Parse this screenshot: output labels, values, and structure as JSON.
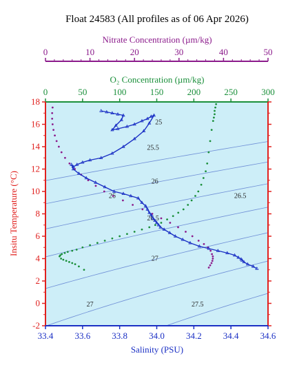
{
  "chart_data": {
    "type": "scatter",
    "title": "Float 24583  (All profiles as of 06 Apr 2026)",
    "xlabel": "Salinity (PSU)",
    "ylabel": "Insitu Temperature (°C)",
    "xlim": [
      33.4,
      34.6
    ],
    "ylim": [
      -2,
      18
    ],
    "x_ticks": [
      "33.4",
      "33.6",
      "33.8",
      "34.0",
      "34.2",
      "34.4",
      "34.6"
    ],
    "y_ticks": [
      "-2",
      "0",
      "2",
      "4",
      "6",
      "8",
      "10",
      "12",
      "14",
      "16",
      "18"
    ],
    "background": "#cdeef8",
    "grid": false,
    "nitrate_axis": {
      "label": "Nitrate Concentration (µm/kg)",
      "range": [
        0,
        50
      ],
      "ticks": [
        "0",
        "10",
        "20",
        "30",
        "40",
        "50"
      ],
      "color": "#8b1a8b"
    },
    "oxygen_axis": {
      "label": "O₂ Concentration (µm/kg)",
      "range": [
        0,
        300
      ],
      "ticks": [
        "0",
        "50",
        "100",
        "150",
        "200",
        "250",
        "300"
      ],
      "color": "#1a8f3a"
    },
    "isopycnals": {
      "color": "#6f8fd6",
      "labels": [
        {
          "text": "25",
          "s": 34.01,
          "t": 16.2
        },
        {
          "text": "25.5",
          "s": 33.98,
          "t": 13.9
        },
        {
          "text": "26",
          "s": 33.99,
          "t": 10.9
        },
        {
          "text": "26",
          "s": 33.76,
          "t": 9.6
        },
        {
          "text": "26.5",
          "s": 34.45,
          "t": 9.6
        },
        {
          "text": "26.5",
          "s": 33.98,
          "t": 7.6
        },
        {
          "text": "27",
          "s": 33.99,
          "t": 4.0
        },
        {
          "text": "27",
          "s": 33.64,
          "t": -0.1
        },
        {
          "text": "27.5",
          "s": 34.22,
          "t": -0.1
        }
      ]
    },
    "series": [
      {
        "name": "Salinity",
        "color": "#1a2fc4",
        "x": [
          33.7,
          33.73,
          33.76,
          33.79,
          33.82,
          33.81,
          33.78,
          33.76,
          33.79,
          33.84,
          33.88,
          33.92,
          33.95,
          33.97,
          33.985,
          33.96,
          33.93,
          33.88,
          33.82,
          33.76,
          33.7,
          33.64,
          33.6,
          33.57,
          33.55,
          33.54,
          33.55,
          33.58,
          33.62,
          33.67,
          33.72,
          33.77,
          33.82,
          33.86,
          33.9,
          33.92,
          33.94,
          33.95,
          33.96,
          33.97,
          33.98,
          33.99,
          34.0,
          34.01,
          34.02,
          34.04,
          34.07,
          34.1,
          34.14,
          34.18,
          34.23,
          34.28,
          34.33,
          34.38,
          34.42,
          34.44,
          34.455,
          34.46,
          34.47,
          34.49,
          34.52,
          34.54
        ],
        "y": [
          17.2,
          17.1,
          17.0,
          16.9,
          16.8,
          16.4,
          15.9,
          15.5,
          15.6,
          15.8,
          16.0,
          16.3,
          16.5,
          16.7,
          16.8,
          16.1,
          15.4,
          14.7,
          14.0,
          13.4,
          13.0,
          12.8,
          12.6,
          12.4,
          12.2,
          12.4,
          12.0,
          11.6,
          11.2,
          10.8,
          10.4,
          10.0,
          9.8,
          9.6,
          9.4,
          9.0,
          8.7,
          8.4,
          8.1,
          7.9,
          7.6,
          7.4,
          7.2,
          7.0,
          6.8,
          6.6,
          6.3,
          6.0,
          5.7,
          5.4,
          5.1,
          4.9,
          4.7,
          4.5,
          4.3,
          4.1,
          3.95,
          3.85,
          3.7,
          3.5,
          3.3,
          3.1
        ]
      },
      {
        "name": "Nitrate",
        "color": "#8b1a8b",
        "x": [
          1.6,
          1.5,
          1.5,
          1.6,
          1.8,
          2.1,
          2.5,
          3.0,
          3.6,
          4.4,
          5.4,
          6.6,
          8.0,
          9.6,
          11.3,
          13.2,
          15.2,
          17.4,
          19.6,
          21.8,
          24.0,
          26.0,
          28.0,
          29.8,
          31.5,
          33.0,
          34.4,
          35.6,
          36.5,
          37.1,
          37.4,
          37.6,
          37.6,
          37.5,
          37.3,
          37.0,
          36.7
        ],
        "y": [
          17.5,
          17.0,
          16.5,
          16.0,
          15.5,
          15.0,
          14.5,
          14.0,
          13.5,
          13.0,
          12.5,
          12.0,
          11.5,
          11.0,
          10.5,
          10.0,
          9.6,
          9.2,
          8.8,
          8.4,
          8.0,
          7.6,
          7.2,
          6.8,
          6.4,
          6.0,
          5.6,
          5.3,
          5.0,
          4.7,
          4.4,
          4.2,
          4.0,
          3.8,
          3.6,
          3.4,
          3.2
        ]
      },
      {
        "name": "Oxygen",
        "color": "#1a8f3a",
        "x": [
          230,
          229,
          228,
          228,
          227,
          226,
          224,
          222,
          220,
          218,
          216,
          213,
          210,
          206,
          202,
          197,
          192,
          186,
          179,
          172,
          164,
          156,
          148,
          140,
          130,
          120,
          110,
          100,
          90,
          80,
          70,
          60,
          50,
          42,
          36,
          30,
          26,
          22,
          20,
          19,
          21,
          24,
          28,
          32,
          36,
          40,
          45,
          52
        ],
        "y": [
          17.8,
          17.5,
          17.2,
          16.9,
          16.6,
          16.3,
          15.5,
          14.5,
          13.5,
          12.5,
          11.8,
          11.2,
          10.6,
          10.0,
          9.6,
          9.2,
          8.8,
          8.4,
          8.1,
          7.8,
          7.5,
          7.2,
          7.0,
          6.8,
          6.6,
          6.4,
          6.2,
          6.0,
          5.8,
          5.6,
          5.4,
          5.2,
          5.0,
          4.8,
          4.7,
          4.6,
          4.5,
          4.4,
          4.3,
          4.2,
          4.0,
          3.9,
          3.8,
          3.7,
          3.6,
          3.5,
          3.3,
          3.0
        ]
      }
    ]
  }
}
